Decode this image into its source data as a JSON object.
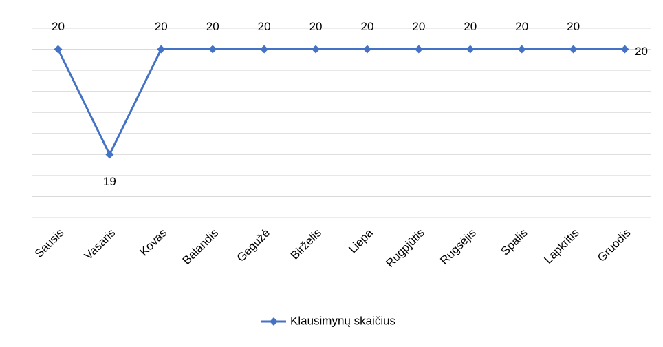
{
  "chart_data": {
    "type": "line",
    "categories": [
      "Sausis",
      "Vasaris",
      "Kovas",
      "Balandis",
      "Gegužė",
      "Birželis",
      "Liepa",
      "Rugpjūtis",
      "Rugsėjis",
      "Spalis",
      "Lapkritis",
      "Gruodis"
    ],
    "series": [
      {
        "name": "Klausimynų skaičius",
        "color": "#4472c4",
        "values": [
          20,
          19,
          20,
          20,
          20,
          20,
          20,
          20,
          20,
          20,
          20,
          20
        ]
      }
    ],
    "ylim": [
      18.4,
      20.2
    ],
    "yticks": [
      18.4,
      18.6,
      18.8,
      19,
      19.2,
      19.4,
      19.6,
      19.8,
      20,
      20.2
    ],
    "grid": true,
    "legend": "bottom"
  }
}
